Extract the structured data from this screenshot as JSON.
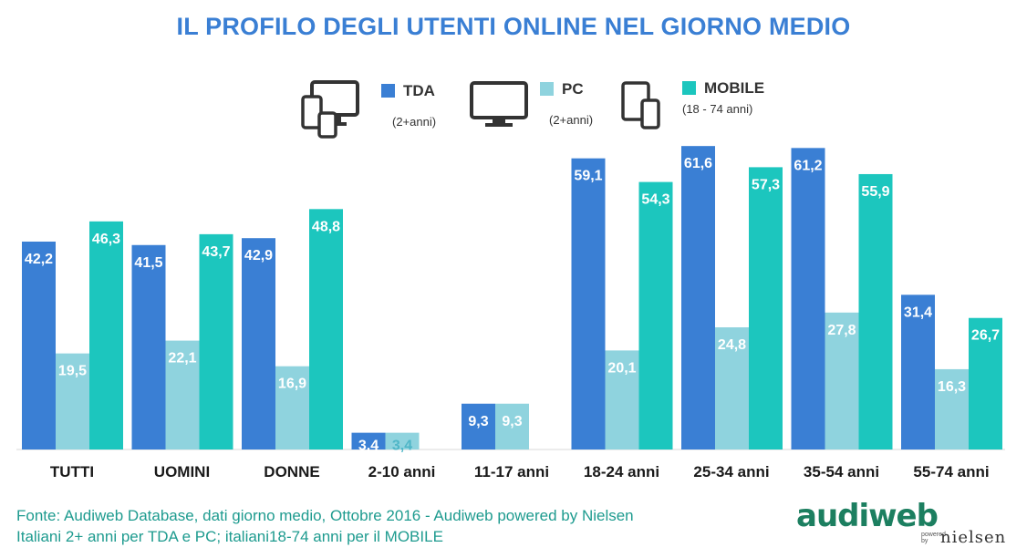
{
  "title": "IL PROFILO DEGLI UTENTI ONLINE NEL GIORNO MEDIO",
  "legend": [
    {
      "name": "TDA",
      "note": "(2+anni)",
      "color": "#3a7fd4",
      "icon": "devices-icon"
    },
    {
      "name": "PC",
      "note": "(2+anni)",
      "color": "#8fd3de",
      "icon": "monitor-icon"
    },
    {
      "name": "MOBILE",
      "note": "(18 - 74 anni)",
      "color": "#1cc6be",
      "icon": "phone-tablet-icon"
    }
  ],
  "chart_data": {
    "type": "bar",
    "title": "IL PROFILO DEGLI UTENTI ONLINE NEL GIORNO MEDIO",
    "categories": [
      "TUTTI",
      "UOMINI",
      "DONNE",
      "2-10 anni",
      "11-17 anni",
      "18-24 anni",
      "25-34 anni",
      "35-54 anni",
      "55-74 anni"
    ],
    "series": [
      {
        "name": "TDA",
        "color": "#3a7fd4",
        "values": [
          42.2,
          41.5,
          42.9,
          3.4,
          9.3,
          59.1,
          61.6,
          61.2,
          31.4
        ],
        "labels": [
          "42,2",
          "41,5",
          "42,9",
          "3,4",
          "9,3",
          "59,1",
          "61,6",
          "61,2",
          "31,4"
        ]
      },
      {
        "name": "PC",
        "color": "#8fd3de",
        "values": [
          19.5,
          22.1,
          16.9,
          3.4,
          9.3,
          20.1,
          24.8,
          27.8,
          16.3
        ],
        "labels": [
          "19,5",
          "22,1",
          "16,9",
          "3,4",
          "9,3",
          "20,1",
          "24,8",
          "27,8",
          "16,3"
        ]
      },
      {
        "name": "MOBILE",
        "color": "#1cc6be",
        "values": [
          46.3,
          43.7,
          48.8,
          null,
          null,
          54.3,
          57.3,
          55.9,
          26.7
        ],
        "labels": [
          "46,3",
          "43,7",
          "48,8",
          null,
          null,
          "54,3",
          "57,3",
          "55,9",
          "26,7"
        ]
      }
    ],
    "ylim": [
      0,
      62
    ],
    "grid": false,
    "legend_position": "top"
  },
  "footer": {
    "line1": "Fonte: Audiweb Database, dati giorno medio, Ottobre 2016 - Audiweb powered by Nielsen",
    "line2": "Italiani 2+ anni per TDA e PC; italiani18-74 anni per il MOBILE"
  },
  "logo": {
    "brand": "audiweb",
    "powered": "powered by",
    "partner": "nielsen"
  }
}
